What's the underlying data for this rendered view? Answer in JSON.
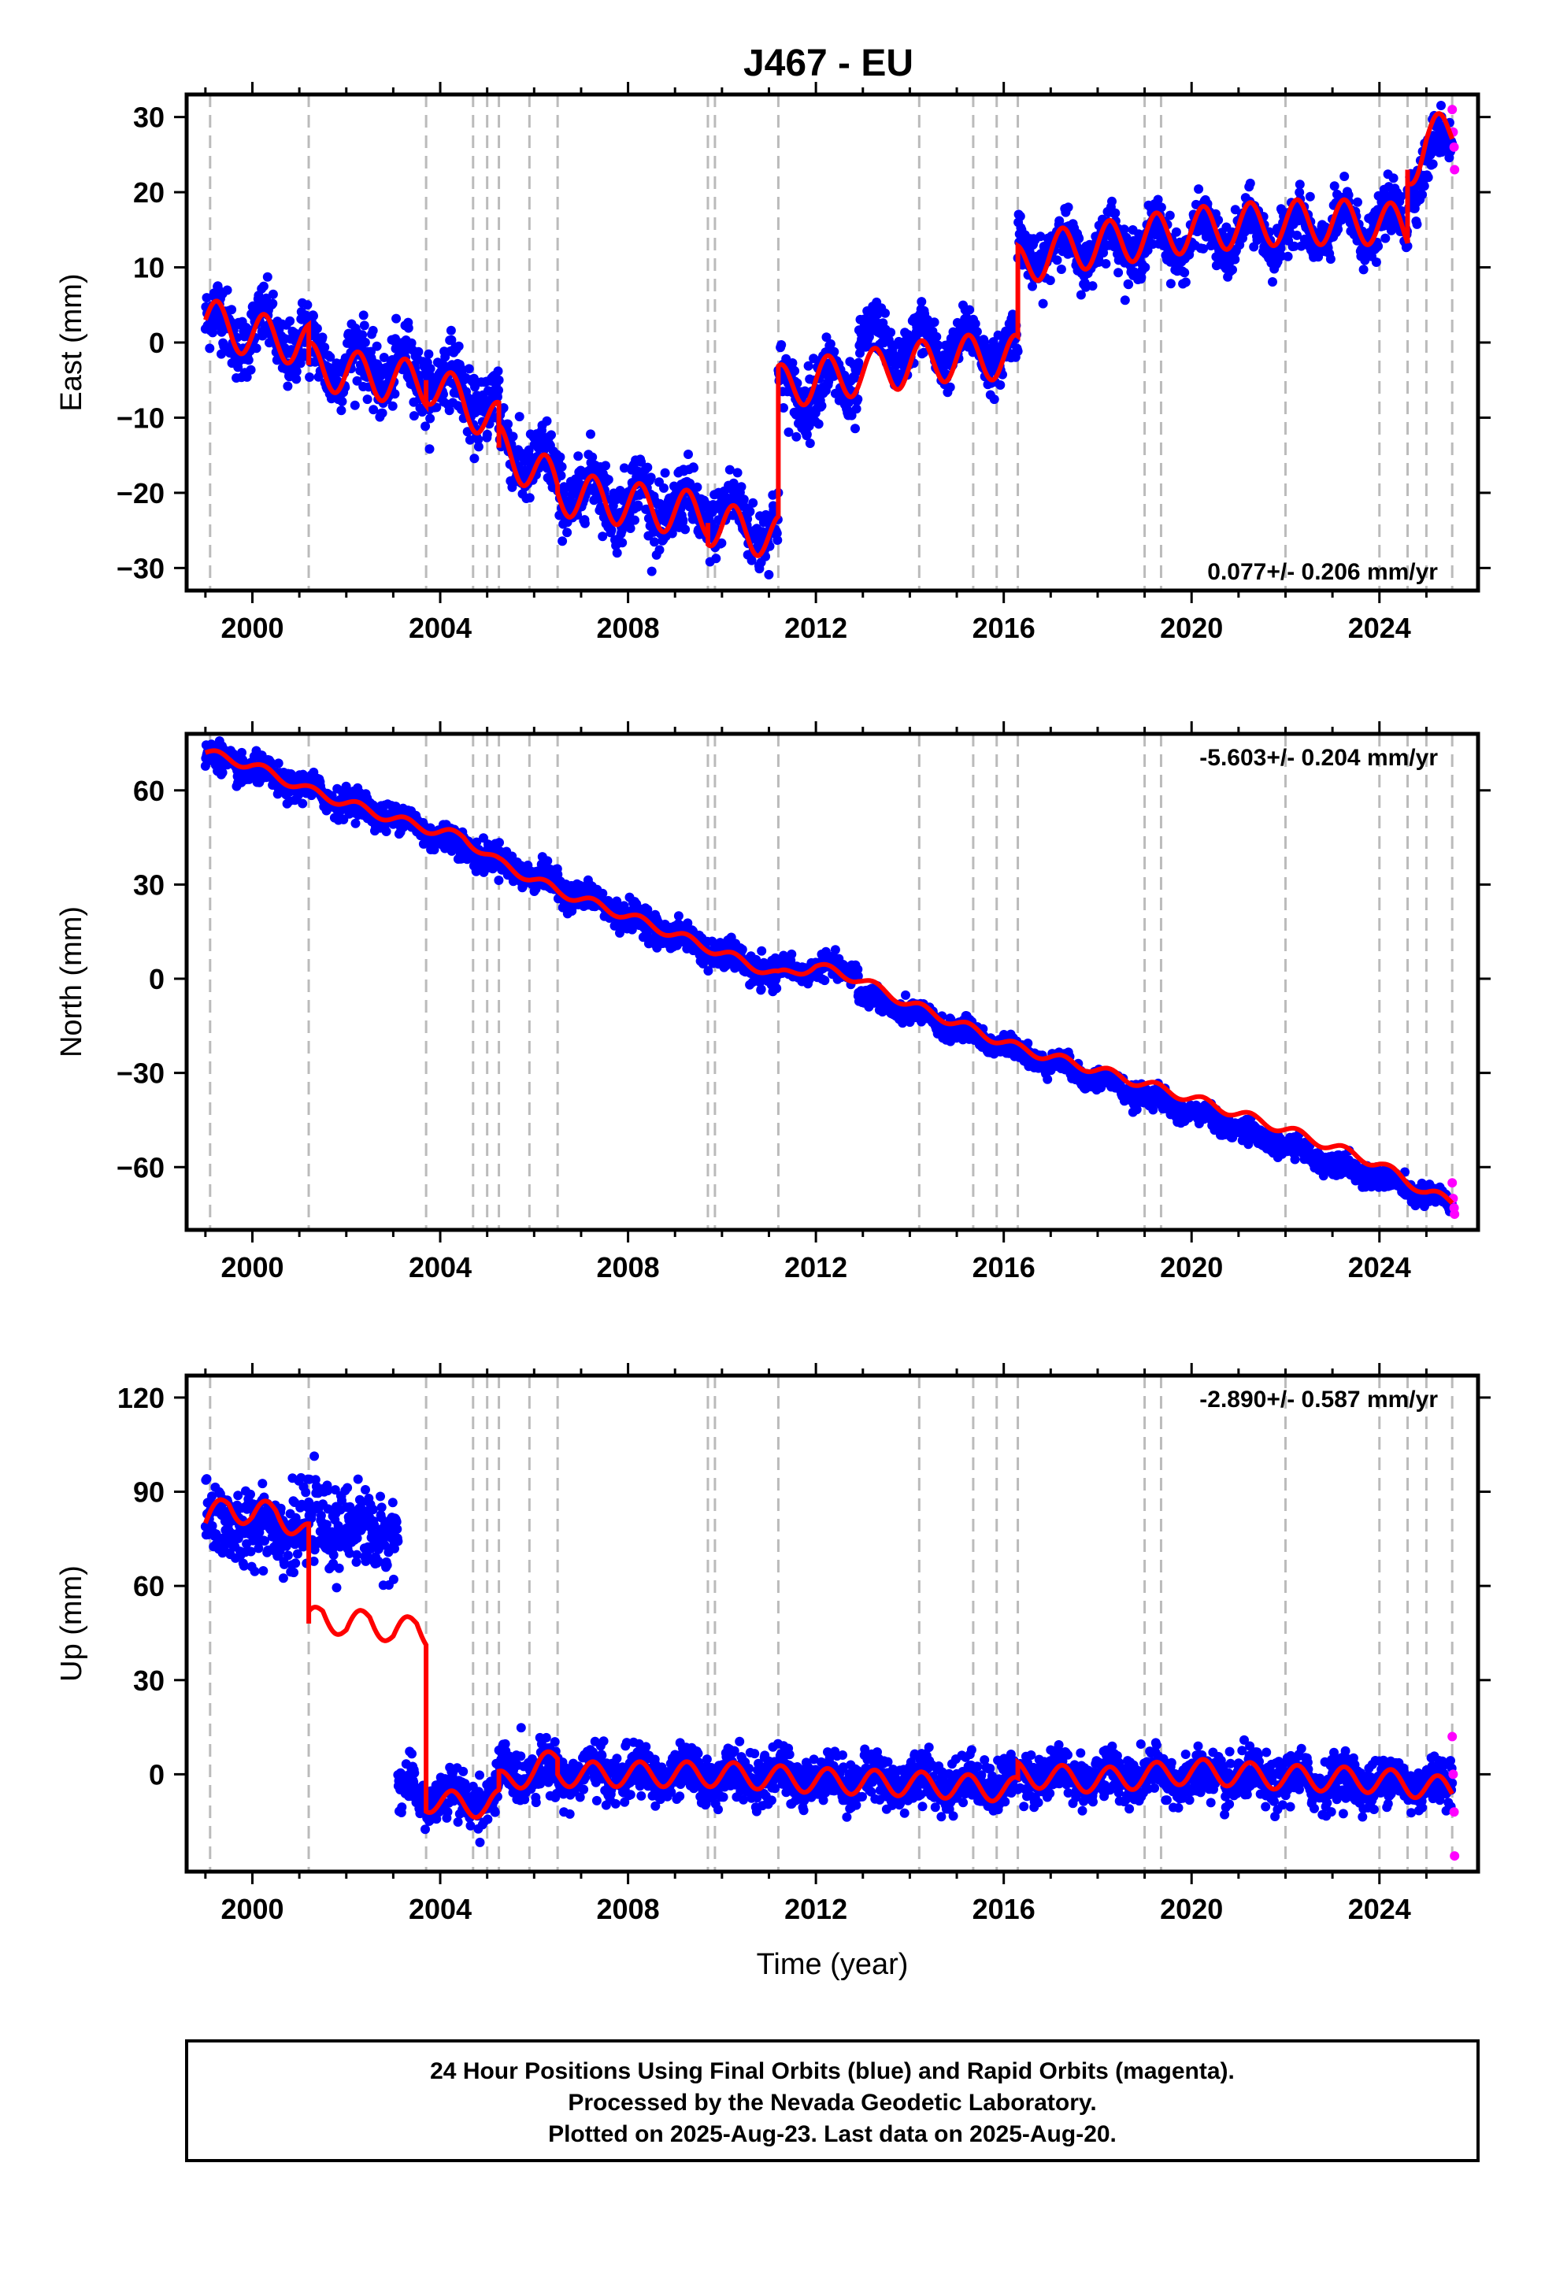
{
  "title": "J467 - EU",
  "colors": {
    "final_orbits": "#0000ff",
    "rapid_orbits": "#ff00ff",
    "model": "#ff0000",
    "events": "#bbbbbb",
    "frame": "#000000"
  },
  "chart_data": [
    {
      "type": "scatter",
      "component": "East",
      "ylabel": "East (mm)",
      "xlabel": "",
      "xlim": [
        1998.6,
        2026.1
      ],
      "ylim": [
        -33,
        33
      ],
      "yticks": [
        -30,
        -20,
        -10,
        0,
        10,
        20,
        30
      ],
      "xticks": [
        2000,
        2004,
        2008,
        2012,
        2016,
        2020,
        2024
      ],
      "rate_label": "0.077+/- 0.206 mm/yr",
      "rate_position": "bottom-right",
      "grid": false,
      "event_lines": [
        1999.1,
        2001.2,
        2003.7,
        2004.7,
        2005.0,
        2005.25,
        2005.9,
        2006.5,
        2009.7,
        2009.85,
        2011.2,
        2014.2,
        2015.35,
        2015.85,
        2016.3,
        2019.0,
        2019.35,
        2022.0,
        2024.0,
        2024.6,
        2025.0,
        2025.55
      ],
      "model_line": {
        "name": "model",
        "x": [
          1999.0,
          1999.5,
          2000.0,
          2000.5,
          2001.0,
          2001.2,
          2001.2,
          2002.0,
          2003.0,
          2003.7,
          2003.7,
          2004.5,
          2005.25,
          2005.25,
          2006.0,
          2006.5,
          2006.5,
          2007.5,
          2008.5,
          2009.7,
          2009.7,
          2010.5,
          2011.2,
          2011.2,
          2012.0,
          2013.0,
          2014.0,
          2015.0,
          2016.3,
          2016.3,
          2017.0,
          2018.0,
          2019.0,
          2020.0,
          2021.0,
          2022.0,
          2023.0,
          2024.0,
          2024.6,
          2024.6,
          2025.0,
          2025.55
        ],
        "y": [
          3,
          2,
          1,
          0.5,
          0,
          -0.5,
          -3,
          -4,
          -5,
          -5.5,
          -5,
          -8,
          -11,
          -14,
          -17,
          -19,
          -20,
          -21,
          -22,
          -23,
          -24,
          -25,
          -26,
          -6,
          -5,
          -4,
          -3,
          -2,
          -2,
          10,
          12,
          13,
          14,
          15,
          15.5,
          16,
          16,
          16,
          15,
          23,
          27,
          28
        ]
      },
      "bands": [
        {
          "x": [
            1999.0,
            2001.2
          ],
          "y": [
            2.5,
            0
          ],
          "spread": 4
        },
        {
          "x": [
            2001.2,
            2003.7
          ],
          "y": [
            -2,
            -4.5
          ],
          "spread": 4
        },
        {
          "x": [
            2003.7,
            2005.25
          ],
          "y": [
            -4,
            -9
          ],
          "spread": 4
        },
        {
          "x": [
            2005.25,
            2006.5
          ],
          "y": [
            -13,
            -18
          ],
          "spread": 4
        },
        {
          "x": [
            2006.5,
            2009.7
          ],
          "y": [
            -19,
            -23
          ],
          "spread": 4
        },
        {
          "x": [
            2009.7,
            2011.2
          ],
          "y": [
            -22,
            -25
          ],
          "spread": 4
        },
        {
          "x": [
            2011.2,
            2012.9
          ],
          "y": [
            -7,
            -5
          ],
          "spread": 4
        },
        {
          "x": [
            2012.9,
            2016.3
          ],
          "y": [
            0,
            -1
          ],
          "spread": 3
        },
        {
          "x": [
            2016.3,
            2024.6
          ],
          "y": [
            12,
            16
          ],
          "spread": 3
        },
        {
          "x": [
            2024.6,
            2025.55
          ],
          "y": [
            22,
            27
          ],
          "spread": 3
        }
      ],
      "rapid_points": {
        "x": [
          2025.55,
          2025.57,
          2025.59,
          2025.6
        ],
        "y": [
          31,
          28,
          26,
          23
        ]
      }
    },
    {
      "type": "scatter",
      "component": "North",
      "ylabel": "North (mm)",
      "xlabel": "",
      "xlim": [
        1998.6,
        2026.1
      ],
      "ylim": [
        -80,
        78
      ],
      "yticks": [
        -60,
        -30,
        0,
        30,
        60
      ],
      "xticks": [
        2000,
        2004,
        2008,
        2012,
        2016,
        2020,
        2024
      ],
      "rate_label": "-5.603+/- 0.204 mm/yr",
      "rate_position": "top-right",
      "grid": false,
      "event_lines": [
        1999.1,
        2001.2,
        2003.7,
        2004.7,
        2005.0,
        2005.25,
        2005.9,
        2006.5,
        2009.7,
        2009.85,
        2011.2,
        2014.2,
        2015.35,
        2015.85,
        2016.3,
        2019.0,
        2019.35,
        2022.0,
        2024.0,
        2024.6,
        2025.0,
        2025.55
      ],
      "model_line": {
        "name": "model",
        "x": [
          1999.0,
          2000.0,
          2001.2,
          2002.0,
          2003.0,
          2003.7,
          2004.5,
          2005.25,
          2006.5,
          2008.0,
          2009.7,
          2011.2,
          2012.0,
          2012.9,
          2014.0,
          2016.3,
          2018.0,
          2020.0,
          2022.0,
          2024.0,
          2025.0,
          2025.55
        ],
        "y": [
          72,
          68,
          60,
          56,
          51,
          48,
          45,
          37,
          28,
          20,
          10,
          1,
          4,
          0,
          -8,
          -22,
          -29,
          -38,
          -48,
          -59,
          -68,
          -71
        ]
      },
      "bands": [
        {
          "x": [
            1999.0,
            2003.7
          ],
          "y": [
            71,
            48
          ],
          "spread": 4
        },
        {
          "x": [
            2003.7,
            2011.2
          ],
          "y": [
            47,
            0
          ],
          "spread": 4
        },
        {
          "x": [
            2011.2,
            2012.9
          ],
          "y": [
            3,
            3
          ],
          "spread": 3
        },
        {
          "x": [
            2012.9,
            2025.55
          ],
          "y": [
            -5,
            -72
          ],
          "spread": 3
        }
      ],
      "rapid_points": {
        "x": [
          2025.55,
          2025.57,
          2025.59,
          2025.6
        ],
        "y": [
          -65,
          -70,
          -73,
          -75
        ]
      }
    },
    {
      "type": "scatter",
      "component": "Up",
      "ylabel": "Up (mm)",
      "xlabel": "Time (year)",
      "xlim": [
        1998.6,
        2026.1
      ],
      "ylim": [
        -31,
        127
      ],
      "yticks": [
        0,
        30,
        60,
        90,
        120
      ],
      "xticks": [
        2000,
        2004,
        2008,
        2012,
        2016,
        2020,
        2024
      ],
      "rate_label": "-2.890+/- 0.587 mm/yr",
      "rate_position": "top-right",
      "grid": false,
      "event_lines": [
        1999.1,
        2001.2,
        2003.7,
        2004.7,
        2005.0,
        2005.25,
        2005.9,
        2006.5,
        2009.7,
        2009.85,
        2011.2,
        2014.2,
        2015.35,
        2015.85,
        2016.3,
        2019.0,
        2019.35,
        2022.0,
        2024.0,
        2024.6,
        2025.0,
        2025.55
      ],
      "model_line": {
        "name": "model",
        "x": [
          1999.0,
          1999.5,
          2000.0,
          2000.5,
          2001.0,
          2001.2,
          2001.2,
          2001.5,
          2002.0,
          2002.5,
          2003.0,
          2003.5,
          2003.7,
          2003.7,
          2004.0,
          2005.0,
          2005.25,
          2005.25,
          2006.0,
          2006.5,
          2006.5,
          2008.0,
          2010.0,
          2012.0,
          2014.0,
          2016.3,
          2016.3,
          2018.0,
          2020.0,
          2022.0,
          2024.0,
          2025.55
        ],
        "y": [
          80,
          86,
          82,
          84,
          78,
          76,
          48,
          52,
          46,
          50,
          44,
          48,
          45,
          -8,
          -9,
          -10,
          -9,
          -3,
          1,
          5,
          0,
          0,
          0,
          -2,
          -3,
          -5,
          0,
          -2,
          1,
          -1,
          -2,
          -5
        ]
      },
      "bands": [
        {
          "x": [
            1999.0,
            2001.2
          ],
          "y": [
            80,
            78
          ],
          "spread": 11
        },
        {
          "x": [
            2001.2,
            2003.1
          ],
          "y": [
            80,
            76
          ],
          "spread": 11
        },
        {
          "x": [
            2003.1,
            2003.7
          ],
          "y": [
            -5,
            -6
          ],
          "spread": 7
        },
        {
          "x": [
            2003.7,
            2005.25
          ],
          "y": [
            -8,
            -8
          ],
          "spread": 7
        },
        {
          "x": [
            2005.25,
            2016.3
          ],
          "y": [
            1,
            -3
          ],
          "spread": 7
        },
        {
          "x": [
            2016.3,
            2025.55
          ],
          "y": [
            0,
            -3
          ],
          "spread": 7
        }
      ],
      "rapid_points": {
        "x": [
          2025.55,
          2025.57,
          2025.59,
          2025.6
        ],
        "y": [
          12,
          0,
          -12,
          -26
        ]
      }
    }
  ],
  "footer": {
    "line1": "24 Hour Positions Using Final Orbits (blue) and Rapid Orbits (magenta).",
    "line2": "Processed by the Nevada Geodetic Laboratory.",
    "line3": "Plotted on 2025-Aug-23. Last data on 2025-Aug-20."
  }
}
